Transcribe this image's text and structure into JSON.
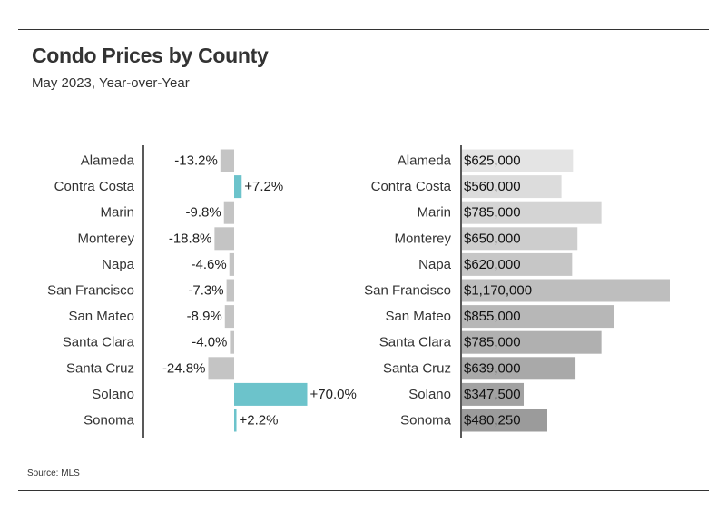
{
  "header": {
    "title": "Condo Prices by County",
    "subtitle": "May 2023, Year-over-Year"
  },
  "footer": {
    "source": "Source: MLS"
  },
  "chart_data": [
    {
      "type": "bar",
      "orientation": "horizontal",
      "categories": [
        "Alameda",
        "Contra Costa",
        "Marin",
        "Monterey",
        "Napa",
        "San Francisco",
        "San Mateo",
        "Santa Clara",
        "Santa Cruz",
        "Solano",
        "Sonoma"
      ],
      "values": [
        -13.2,
        7.2,
        -9.8,
        -18.8,
        -4.6,
        -7.3,
        -8.9,
        -4.0,
        -24.8,
        70.0,
        2.2
      ],
      "value_labels": [
        "-13.2%",
        "+7.2%",
        "-9.8%",
        "-18.8%",
        "-4.6%",
        "-7.3%",
        "-8.9%",
        "-4.0%",
        "-24.8%",
        "+70.0%",
        "+2.2%"
      ],
      "colors": {
        "negative": "#c4c4c4",
        "positive": "#6cc3cb"
      }
    },
    {
      "type": "bar",
      "orientation": "horizontal",
      "categories": [
        "Alameda",
        "Contra Costa",
        "Marin",
        "Monterey",
        "Napa",
        "San Francisco",
        "San Mateo",
        "Santa Clara",
        "Santa Cruz",
        "Solano",
        "Sonoma"
      ],
      "values": [
        625000,
        560000,
        785000,
        650000,
        620000,
        1170000,
        855000,
        785000,
        639000,
        347500,
        480250
      ],
      "value_labels": [
        "$625,000",
        "$560,000",
        "$785,000",
        "$650,000",
        "$620,000",
        "$1,170,000",
        "$855,000",
        "$785,000",
        "$639,000",
        "$347,500",
        "$480,250"
      ],
      "colors": [
        "#e4e4e4",
        "#dcdcdc",
        "#d4d4d4",
        "#cdcdcd",
        "#c6c6c6",
        "#bebebe",
        "#b7b7b7",
        "#b0b0b0",
        "#a9a9a9",
        "#a2a2a2",
        "#9b9b9b"
      ]
    }
  ]
}
